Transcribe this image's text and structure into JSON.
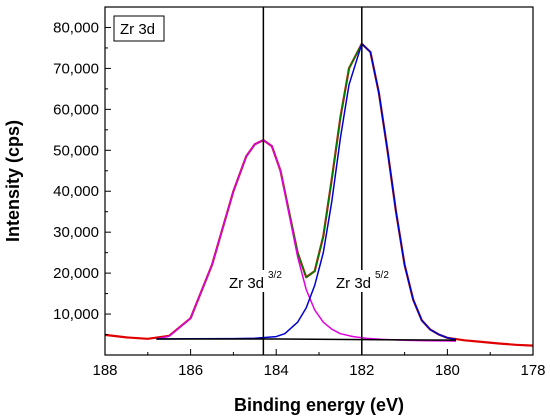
{
  "chart_data": {
    "type": "line",
    "title": "",
    "xlabel": "Binding energy (eV)",
    "ylabel": "Intensity (cps)",
    "xlim": [
      188,
      178
    ],
    "ylim": [
      0,
      85000
    ],
    "x_reversed": true,
    "xticks": [
      188,
      186,
      184,
      182,
      180,
      178
    ],
    "xtick_labels": [
      "188",
      "186",
      "184",
      "182",
      "180",
      "178"
    ],
    "yticks": [
      10000,
      20000,
      30000,
      40000,
      50000,
      60000,
      70000,
      80000
    ],
    "ytick_labels": [
      "10,000",
      "20,000",
      "30,000",
      "40,000",
      "50,000",
      "60,000",
      "70,000",
      "80,000"
    ],
    "grid": false,
    "legend": "none",
    "annotations": {
      "box_label": "Zr 3d",
      "peak1_label": "Zr 3d",
      "peak1_sup": "3/2",
      "peak2_label": "Zr 3d",
      "peak2_sup": "5/2"
    },
    "vlines": [
      184.3,
      182.0
    ],
    "series": [
      {
        "color": "#e00000",
        "role": "measured",
        "x": [
          188.0,
          187.5,
          187.0,
          186.5,
          186.0,
          185.5,
          185.0,
          184.7,
          184.5,
          184.3,
          184.1,
          183.9,
          183.7,
          183.5,
          183.3,
          183.1,
          182.9,
          182.7,
          182.5,
          182.3,
          182.0,
          181.8,
          181.6,
          181.4,
          181.2,
          181.0,
          180.8,
          180.6,
          180.4,
          180.2,
          180.0,
          179.6,
          179.2,
          178.8,
          178.4,
          178.0
        ],
        "values": [
          4900,
          4300,
          3950,
          4700,
          9000,
          22000,
          40000,
          48500,
          51500,
          52500,
          51000,
          45000,
          35000,
          25000,
          19000,
          20500,
          29000,
          43000,
          58000,
          70000,
          76000,
          74000,
          64000,
          50000,
          35000,
          22000,
          13500,
          8500,
          6200,
          5000,
          4200,
          3600,
          3200,
          2800,
          2500,
          2300
        ]
      },
      {
        "color": "#008000",
        "role": "envelope",
        "x": [
          186.8,
          186.5,
          186.0,
          185.5,
          185.0,
          184.7,
          184.5,
          184.3,
          184.1,
          183.9,
          183.7,
          183.5,
          183.3,
          183.1,
          182.9,
          182.7,
          182.5,
          182.3,
          182.0,
          181.8,
          181.6,
          181.4,
          181.2,
          181.0,
          180.8,
          180.6,
          180.4,
          180.2,
          180.0,
          179.8
        ],
        "values": [
          3900,
          4600,
          9000,
          22000,
          40000,
          48500,
          51500,
          52500,
          51000,
          45000,
          35000,
          25000,
          19000,
          20500,
          29000,
          43000,
          58000,
          70000,
          76000,
          74000,
          64000,
          50000,
          35000,
          22000,
          13500,
          8500,
          6200,
          5000,
          4200,
          3800
        ]
      },
      {
        "color": "#e000e0",
        "role": "component-3d3/2",
        "x": [
          186.8,
          186.5,
          186.0,
          185.5,
          185.0,
          184.7,
          184.5,
          184.3,
          184.1,
          183.9,
          183.7,
          183.5,
          183.3,
          183.1,
          182.9,
          182.7,
          182.5,
          182.2,
          181.9,
          181.5,
          181.0,
          180.5,
          180.0,
          179.8
        ],
        "values": [
          3900,
          4600,
          9000,
          22000,
          40000,
          48500,
          51500,
          52500,
          51000,
          45000,
          34500,
          24000,
          16000,
          11000,
          8000,
          6300,
          5200,
          4500,
          4100,
          3800,
          3600,
          3500,
          3450,
          3400
        ]
      },
      {
        "color": "#0000d0",
        "role": "component-3d5/2",
        "x": [
          186.8,
          186.0,
          185.0,
          184.5,
          184.0,
          183.8,
          183.5,
          183.3,
          183.1,
          182.9,
          182.7,
          182.5,
          182.3,
          182.0,
          181.8,
          181.6,
          181.4,
          181.2,
          181.0,
          180.8,
          180.6,
          180.4,
          180.2,
          180.0,
          179.8
        ],
        "values": [
          3900,
          3950,
          4000,
          4100,
          4500,
          5200,
          8000,
          11500,
          17000,
          25000,
          37500,
          53000,
          66000,
          76000,
          74000,
          64000,
          50000,
          35000,
          22000,
          13500,
          8500,
          6200,
          5000,
          4200,
          3800
        ]
      },
      {
        "color": "#000000",
        "role": "baseline",
        "x": [
          186.8,
          183.9,
          181.0,
          179.8
        ],
        "values": [
          3900,
          3900,
          3700,
          3650
        ]
      }
    ]
  }
}
